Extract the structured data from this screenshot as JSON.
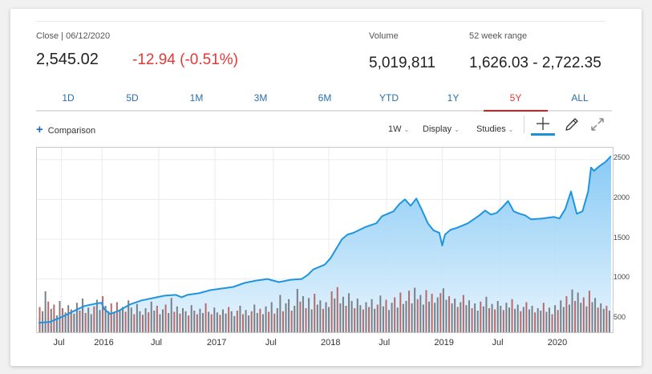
{
  "quote": {
    "close_label": "Close | 06/12/2020",
    "price": "2,545.02",
    "change": "-12.94 (-0.51%)",
    "volume_label": "Volume",
    "volume": "5,019,811",
    "range_label": "52 week range",
    "range": "1,626.03 - 2,722.35"
  },
  "tabs": [
    "1D",
    "5D",
    "1M",
    "3M",
    "6M",
    "YTD",
    "1Y",
    "5Y",
    "ALL"
  ],
  "active_tab": "5Y",
  "toolbar": {
    "comparison": "Comparison",
    "interval": "1W",
    "display": "Display",
    "studies": "Studies"
  },
  "colors": {
    "accent": "#d0211c",
    "link": "#2a6fa8",
    "line": "#1f95e0",
    "down": "#e23a36"
  },
  "chart_data": {
    "type": "area",
    "y_ticks": [
      "2500",
      "2000",
      "1500",
      "1000",
      "500"
    ],
    "ylim": [
      330,
      2650
    ],
    "x_tick_labels": [
      "Jul",
      "2016",
      "Jul",
      "2017",
      "Jul",
      "2018",
      "Jul",
      "2019",
      "Jul",
      "2020"
    ],
    "x_tick_positions": [
      0.04,
      0.111,
      0.21,
      0.308,
      0.41,
      0.507,
      0.608,
      0.705,
      0.806,
      0.903
    ],
    "price_points": [
      [
        0.0,
        450
      ],
      [
        0.02,
        460
      ],
      [
        0.04,
        520
      ],
      [
        0.06,
        590
      ],
      [
        0.08,
        660
      ],
      [
        0.1,
        690
      ],
      [
        0.11,
        700
      ],
      [
        0.115,
        620
      ],
      [
        0.125,
        560
      ],
      [
        0.14,
        600
      ],
      [
        0.16,
        680
      ],
      [
        0.18,
        730
      ],
      [
        0.2,
        760
      ],
      [
        0.22,
        790
      ],
      [
        0.24,
        800
      ],
      [
        0.25,
        770
      ],
      [
        0.26,
        800
      ],
      [
        0.28,
        820
      ],
      [
        0.3,
        860
      ],
      [
        0.32,
        880
      ],
      [
        0.34,
        900
      ],
      [
        0.36,
        950
      ],
      [
        0.38,
        980
      ],
      [
        0.4,
        1000
      ],
      [
        0.41,
        980
      ],
      [
        0.42,
        960
      ],
      [
        0.44,
        990
      ],
      [
        0.46,
        1000
      ],
      [
        0.47,
        1050
      ],
      [
        0.48,
        1120
      ],
      [
        0.5,
        1180
      ],
      [
        0.51,
        1260
      ],
      [
        0.52,
        1380
      ],
      [
        0.53,
        1500
      ],
      [
        0.54,
        1560
      ],
      [
        0.55,
        1580
      ],
      [
        0.57,
        1650
      ],
      [
        0.59,
        1700
      ],
      [
        0.6,
        1790
      ],
      [
        0.62,
        1850
      ],
      [
        0.63,
        1940
      ],
      [
        0.64,
        2000
      ],
      [
        0.65,
        1920
      ],
      [
        0.66,
        2010
      ],
      [
        0.67,
        1860
      ],
      [
        0.68,
        1700
      ],
      [
        0.69,
        1610
      ],
      [
        0.7,
        1580
      ],
      [
        0.705,
        1420
      ],
      [
        0.71,
        1560
      ],
      [
        0.72,
        1620
      ],
      [
        0.73,
        1640
      ],
      [
        0.75,
        1700
      ],
      [
        0.77,
        1800
      ],
      [
        0.78,
        1860
      ],
      [
        0.79,
        1810
      ],
      [
        0.8,
        1830
      ],
      [
        0.81,
        1900
      ],
      [
        0.82,
        1980
      ],
      [
        0.83,
        1850
      ],
      [
        0.84,
        1820
      ],
      [
        0.85,
        1800
      ],
      [
        0.86,
        1750
      ],
      [
        0.88,
        1760
      ],
      [
        0.9,
        1780
      ],
      [
        0.91,
        1760
      ],
      [
        0.92,
        1880
      ],
      [
        0.93,
        2100
      ],
      [
        0.94,
        1820
      ],
      [
        0.95,
        1850
      ],
      [
        0.96,
        2100
      ],
      [
        0.965,
        2400
      ],
      [
        0.97,
        2360
      ],
      [
        0.98,
        2420
      ],
      [
        0.99,
        2470
      ],
      [
        1.0,
        2545
      ]
    ],
    "volume_bars": [
      [
        0.0,
        4.2
      ],
      [
        0.005,
        3.5
      ],
      [
        0.01,
        6.8
      ],
      [
        0.015,
        5.1
      ],
      [
        0.02,
        3.9
      ],
      [
        0.025,
        4.6
      ],
      [
        0.03,
        2.8
      ],
      [
        0.035,
        5.2
      ],
      [
        0.04,
        4.0
      ],
      [
        0.045,
        3.3
      ],
      [
        0.05,
        4.5
      ],
      [
        0.055,
        3.8
      ],
      [
        0.06,
        3.1
      ],
      [
        0.065,
        4.9
      ],
      [
        0.07,
        3.6
      ],
      [
        0.075,
        5.6
      ],
      [
        0.08,
        3.2
      ],
      [
        0.085,
        4.1
      ],
      [
        0.09,
        3.0
      ],
      [
        0.095,
        4.3
      ],
      [
        0.1,
        5.4
      ],
      [
        0.105,
        3.7
      ],
      [
        0.11,
        6.0
      ],
      [
        0.115,
        4.4
      ],
      [
        0.12,
        3.5
      ],
      [
        0.125,
        4.8
      ],
      [
        0.13,
        3.2
      ],
      [
        0.135,
        5.0
      ],
      [
        0.14,
        3.6
      ],
      [
        0.145,
        4.2
      ],
      [
        0.15,
        3.4
      ],
      [
        0.155,
        5.3
      ],
      [
        0.16,
        4.1
      ],
      [
        0.165,
        3.0
      ],
      [
        0.17,
        4.7
      ],
      [
        0.175,
        3.5
      ],
      [
        0.18,
        2.9
      ],
      [
        0.185,
        4.0
      ],
      [
        0.19,
        3.3
      ],
      [
        0.195,
        5.1
      ],
      [
        0.2,
        3.6
      ],
      [
        0.205,
        4.4
      ],
      [
        0.21,
        3.0
      ],
      [
        0.215,
        3.8
      ],
      [
        0.22,
        4.6
      ],
      [
        0.225,
        3.2
      ],
      [
        0.23,
        5.7
      ],
      [
        0.235,
        3.4
      ],
      [
        0.24,
        4.3
      ],
      [
        0.245,
        3.1
      ],
      [
        0.25,
        4.0
      ],
      [
        0.255,
        3.5
      ],
      [
        0.26,
        2.8
      ],
      [
        0.265,
        4.5
      ],
      [
        0.27,
        3.6
      ],
      [
        0.275,
        3.0
      ],
      [
        0.28,
        3.9
      ],
      [
        0.285,
        3.2
      ],
      [
        0.29,
        4.8
      ],
      [
        0.295,
        3.4
      ],
      [
        0.3,
        3.0
      ],
      [
        0.305,
        4.1
      ],
      [
        0.31,
        3.3
      ],
      [
        0.315,
        2.9
      ],
      [
        0.32,
        3.8
      ],
      [
        0.325,
        3.1
      ],
      [
        0.33,
        4.2
      ],
      [
        0.335,
        3.5
      ],
      [
        0.34,
        2.7
      ],
      [
        0.345,
        3.6
      ],
      [
        0.35,
        4.4
      ],
      [
        0.355,
        3.0
      ],
      [
        0.36,
        3.7
      ],
      [
        0.365,
        2.8
      ],
      [
        0.37,
        3.5
      ],
      [
        0.375,
        4.6
      ],
      [
        0.38,
        3.2
      ],
      [
        0.385,
        3.9
      ],
      [
        0.39,
        3.0
      ],
      [
        0.395,
        4.3
      ],
      [
        0.4,
        3.4
      ],
      [
        0.405,
        5.0
      ],
      [
        0.41,
        3.1
      ],
      [
        0.415,
        4.0
      ],
      [
        0.42,
        6.2
      ],
      [
        0.425,
        3.5
      ],
      [
        0.43,
        4.8
      ],
      [
        0.435,
        5.5
      ],
      [
        0.44,
        3.6
      ],
      [
        0.445,
        4.4
      ],
      [
        0.45,
        7.2
      ],
      [
        0.455,
        5.1
      ],
      [
        0.46,
        6.0
      ],
      [
        0.465,
        4.0
      ],
      [
        0.47,
        5.7
      ],
      [
        0.475,
        3.8
      ],
      [
        0.48,
        6.4
      ],
      [
        0.485,
        4.6
      ],
      [
        0.49,
        5.3
      ],
      [
        0.495,
        3.9
      ],
      [
        0.5,
        5.0
      ],
      [
        0.505,
        4.2
      ],
      [
        0.51,
        6.8
      ],
      [
        0.515,
        5.6
      ],
      [
        0.52,
        7.5
      ],
      [
        0.525,
        4.8
      ],
      [
        0.53,
        5.9
      ],
      [
        0.535,
        4.4
      ],
      [
        0.54,
        6.5
      ],
      [
        0.545,
        5.2
      ],
      [
        0.55,
        4.0
      ],
      [
        0.555,
        5.6
      ],
      [
        0.56,
        4.5
      ],
      [
        0.565,
        3.8
      ],
      [
        0.57,
        5.0
      ],
      [
        0.575,
        4.2
      ],
      [
        0.58,
        5.5
      ],
      [
        0.585,
        3.9
      ],
      [
        0.59,
        4.6
      ],
      [
        0.595,
        6.1
      ],
      [
        0.6,
        4.3
      ],
      [
        0.605,
        5.4
      ],
      [
        0.61,
        3.7
      ],
      [
        0.615,
        4.9
      ],
      [
        0.62,
        5.8
      ],
      [
        0.625,
        4.1
      ],
      [
        0.63,
        6.6
      ],
      [
        0.635,
        4.7
      ],
      [
        0.64,
        5.2
      ],
      [
        0.645,
        6.9
      ],
      [
        0.65,
        4.8
      ],
      [
        0.655,
        7.4
      ],
      [
        0.66,
        5.5
      ],
      [
        0.665,
        6.2
      ],
      [
        0.67,
        4.6
      ],
      [
        0.675,
        7.0
      ],
      [
        0.68,
        5.1
      ],
      [
        0.685,
        6.4
      ],
      [
        0.69,
        4.9
      ],
      [
        0.695,
        5.8
      ],
      [
        0.7,
        6.5
      ],
      [
        0.705,
        7.3
      ],
      [
        0.71,
        5.4
      ],
      [
        0.715,
        6.0
      ],
      [
        0.72,
        4.8
      ],
      [
        0.725,
        5.6
      ],
      [
        0.73,
        4.2
      ],
      [
        0.735,
        5.0
      ],
      [
        0.74,
        6.2
      ],
      [
        0.745,
        4.5
      ],
      [
        0.75,
        5.3
      ],
      [
        0.755,
        4.0
      ],
      [
        0.76,
        4.8
      ],
      [
        0.765,
        3.6
      ],
      [
        0.77,
        5.1
      ],
      [
        0.775,
        4.3
      ],
      [
        0.78,
        5.9
      ],
      [
        0.785,
        4.0
      ],
      [
        0.79,
        4.7
      ],
      [
        0.795,
        3.8
      ],
      [
        0.8,
        5.2
      ],
      [
        0.805,
        4.4
      ],
      [
        0.81,
        3.7
      ],
      [
        0.815,
        4.9
      ],
      [
        0.82,
        4.1
      ],
      [
        0.825,
        5.5
      ],
      [
        0.83,
        3.9
      ],
      [
        0.835,
        4.6
      ],
      [
        0.84,
        3.5
      ],
      [
        0.845,
        4.2
      ],
      [
        0.85,
        5.0
      ],
      [
        0.855,
        3.8
      ],
      [
        0.86,
        4.4
      ],
      [
        0.865,
        3.3
      ],
      [
        0.87,
        4.0
      ],
      [
        0.875,
        3.6
      ],
      [
        0.88,
        4.9
      ],
      [
        0.885,
        3.4
      ],
      [
        0.89,
        4.1
      ],
      [
        0.895,
        3.0
      ],
      [
        0.9,
        4.5
      ],
      [
        0.905,
        3.7
      ],
      [
        0.91,
        5.3
      ],
      [
        0.915,
        4.2
      ],
      [
        0.92,
        6.0
      ],
      [
        0.925,
        4.6
      ],
      [
        0.93,
        7.1
      ],
      [
        0.935,
        5.2
      ],
      [
        0.94,
        6.6
      ],
      [
        0.945,
        4.9
      ],
      [
        0.95,
        5.8
      ],
      [
        0.955,
        4.3
      ],
      [
        0.96,
        6.9
      ],
      [
        0.965,
        5.0
      ],
      [
        0.97,
        5.7
      ],
      [
        0.975,
        4.1
      ],
      [
        0.98,
        4.8
      ],
      [
        0.985,
        3.9
      ],
      [
        0.99,
        4.4
      ],
      [
        0.995,
        3.6
      ]
    ],
    "down_bar_pattern": [
      1,
      0,
      0,
      1,
      0,
      1,
      0,
      0,
      1,
      0,
      0
    ]
  }
}
